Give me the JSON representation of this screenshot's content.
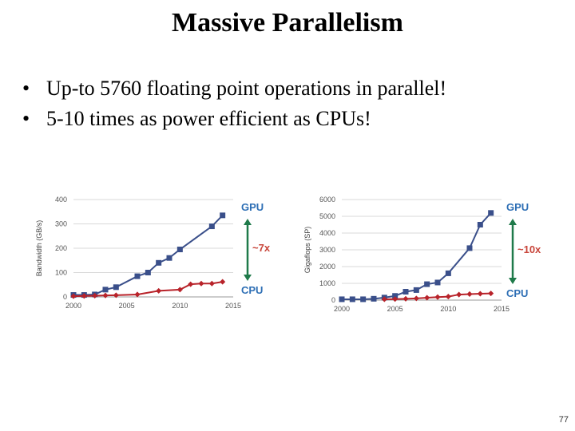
{
  "slide": {
    "title": "Massive Parallelism",
    "bullets": [
      "Up-to 5760 floating point operations in parallel!",
      "5-10 times as power efficient as CPUs!"
    ],
    "page_number": "77"
  },
  "colors": {
    "gpu": "#3a4f8a",
    "cpu": "#b8232a",
    "label": "#2e6fb5",
    "ratio": "#c8453a",
    "arrow": "#1f7a4a"
  },
  "chart_data": [
    {
      "type": "line",
      "ylabel": "Bandwidth (GB/s)",
      "xlabel": "",
      "xlim": [
        2000,
        2015
      ],
      "ylim": [
        0,
        400
      ],
      "xticks": [
        2000,
        2005,
        2010,
        2015
      ],
      "yticks": [
        0,
        100,
        200,
        300,
        400
      ],
      "series": [
        {
          "name": "GPU",
          "x": [
            2000,
            2001,
            2002,
            2003,
            2004,
            2006,
            2007,
            2008,
            2009,
            2010,
            2013,
            2014
          ],
          "y": [
            8,
            8,
            10,
            30,
            40,
            85,
            100,
            140,
            160,
            195,
            290,
            335
          ]
        },
        {
          "name": "CPU",
          "x": [
            2000,
            2001,
            2002,
            2003,
            2004,
            2006,
            2008,
            2010,
            2011,
            2012,
            2013,
            2014
          ],
          "y": [
            3,
            4,
            5,
            6,
            7,
            10,
            25,
            30,
            52,
            55,
            55,
            62
          ]
        }
      ],
      "annotations": {
        "top_label": "GPU",
        "ratio_label": "~7x",
        "bottom_label": "CPU"
      }
    },
    {
      "type": "line",
      "ylabel": "Gigaflops (SP)",
      "xlabel": "",
      "xlim": [
        2000,
        2015
      ],
      "ylim": [
        0,
        6000
      ],
      "xticks": [
        2000,
        2005,
        2010,
        2015
      ],
      "yticks": [
        0,
        1000,
        2000,
        3000,
        4000,
        5000,
        6000
      ],
      "series": [
        {
          "name": "GPU",
          "x": [
            2000,
            2001,
            2002,
            2003,
            2004,
            2005,
            2006,
            2007,
            2008,
            2009,
            2010,
            2012,
            2013,
            2014
          ],
          "y": [
            50,
            50,
            50,
            80,
            150,
            250,
            500,
            600,
            950,
            1050,
            1600,
            3100,
            4500,
            5200
          ]
        },
        {
          "name": "CPU",
          "x": [
            2004,
            2005,
            2006,
            2007,
            2008,
            2009,
            2010,
            2011,
            2012,
            2013,
            2014
          ],
          "y": [
            50,
            60,
            80,
            100,
            140,
            180,
            210,
            330,
            360,
            380,
            400
          ]
        }
      ],
      "annotations": {
        "top_label": "GPU",
        "ratio_label": "~10x",
        "bottom_label": "CPU"
      }
    }
  ]
}
